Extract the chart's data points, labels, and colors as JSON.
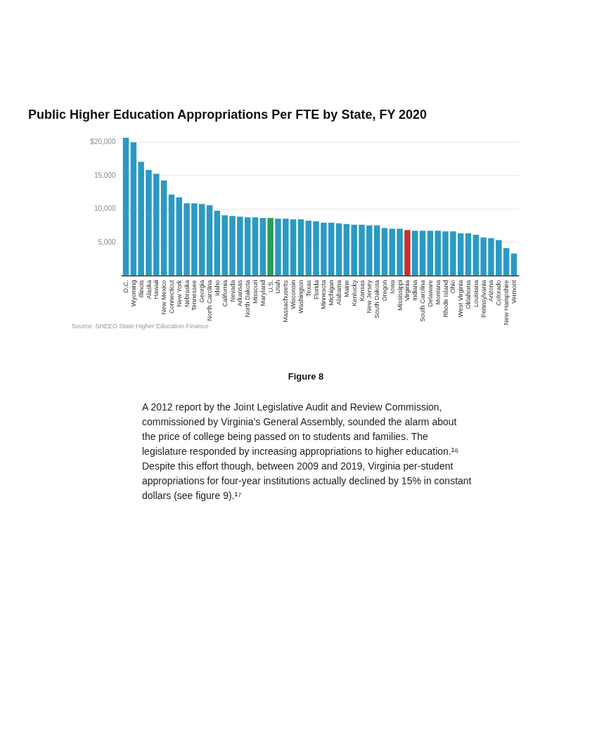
{
  "chart_data": {
    "type": "bar",
    "title": "Public Higher Education Appropriations Per FTE by State, FY 2020",
    "categories": [
      "D.C.",
      "Wyoming",
      "Illinois",
      "Alaska",
      "Hawaii",
      "New Mexico",
      "Connecticut",
      "New York",
      "Nebraska",
      "Tennessee",
      "Georgia",
      "North Carolina",
      "Idaho",
      "California",
      "Nevada",
      "Arkansas",
      "North Dakota",
      "Missouri",
      "Maryland",
      "U.S.",
      "Utah",
      "Massachusetts",
      "Wisconsin",
      "Washington",
      "Texas",
      "Florida",
      "Minnesota",
      "Michigan",
      "Alabama",
      "Maine",
      "Kentucky",
      "Kansas",
      "New Jersey",
      "South Dakota",
      "Oregon",
      "Iowa",
      "Mississippi",
      "Virginia",
      "Indiana",
      "South Carolina",
      "Delaware",
      "Montana",
      "Rhode Island",
      "Ohio",
      "West Virginia",
      "Oklahoma",
      "Louisiana",
      "Pennsylvania",
      "Arizona",
      "Colorado",
      "New Hampshire",
      "Vermont"
    ],
    "values": [
      20600,
      19900,
      17000,
      15800,
      15200,
      14200,
      12100,
      11700,
      10800,
      10800,
      10700,
      10500,
      9700,
      9000,
      8900,
      8800,
      8700,
      8700,
      8600,
      8600,
      8500,
      8500,
      8400,
      8400,
      8200,
      8100,
      7900,
      7900,
      7800,
      7700,
      7600,
      7600,
      7500,
      7500,
      7100,
      7000,
      7000,
      6800,
      6700,
      6700,
      6700,
      6700,
      6600,
      6600,
      6300,
      6300,
      6100,
      5700,
      5600,
      5300,
      4100,
      3300
    ],
    "colors": [
      "#2b9ac3",
      "#2b9ac3",
      "#2b9ac3",
      "#2b9ac3",
      "#2b9ac3",
      "#2b9ac3",
      "#2b9ac3",
      "#2b9ac3",
      "#2b9ac3",
      "#2b9ac3",
      "#2b9ac3",
      "#2b9ac3",
      "#2b9ac3",
      "#2b9ac3",
      "#2b9ac3",
      "#2b9ac3",
      "#2b9ac3",
      "#2b9ac3",
      "#2b9ac3",
      "#2a9d58",
      "#2b9ac3",
      "#2b9ac3",
      "#2b9ac3",
      "#2b9ac3",
      "#2b9ac3",
      "#2b9ac3",
      "#2b9ac3",
      "#2b9ac3",
      "#2b9ac3",
      "#2b9ac3",
      "#2b9ac3",
      "#2b9ac3",
      "#2b9ac3",
      "#2b9ac3",
      "#2b9ac3",
      "#2b9ac3",
      "#2b9ac3",
      "#c8302c",
      "#2b9ac3",
      "#2b9ac3",
      "#2b9ac3",
      "#2b9ac3",
      "#2b9ac3",
      "#2b9ac3",
      "#2b9ac3",
      "#2b9ac3",
      "#2b9ac3",
      "#2b9ac3",
      "#2b9ac3",
      "#2b9ac3",
      "#2b9ac3",
      "#2b9ac3"
    ],
    "ylim": [
      0,
      20700
    ],
    "yticks": [
      {
        "value": 5000,
        "label": "5,000"
      },
      {
        "value": 10000,
        "label": "10,000"
      },
      {
        "value": 15000,
        "label": "15,000"
      },
      {
        "value": 20000,
        "label": "$20,000"
      }
    ],
    "grid": "y",
    "annotations": [
      "Source: SHEEO State Higher Education Finance",
      "Figure 8",
      "A 2012 report by the Joint Legislative Audit and Review Commission,\ncommissioned by Virginia’s General Assembly, sounded the alarm about\nthe price of college being passed on to students and families. The\nlegislature responded by increasing appropriations to higher education.¹⁶\nDespite this effort though, between 2009 and 2019, Virginia per-student\nappropriations for four-year institutions actually declined by 15% in constant\ndollars (see figure 9).¹⁷"
    ]
  }
}
